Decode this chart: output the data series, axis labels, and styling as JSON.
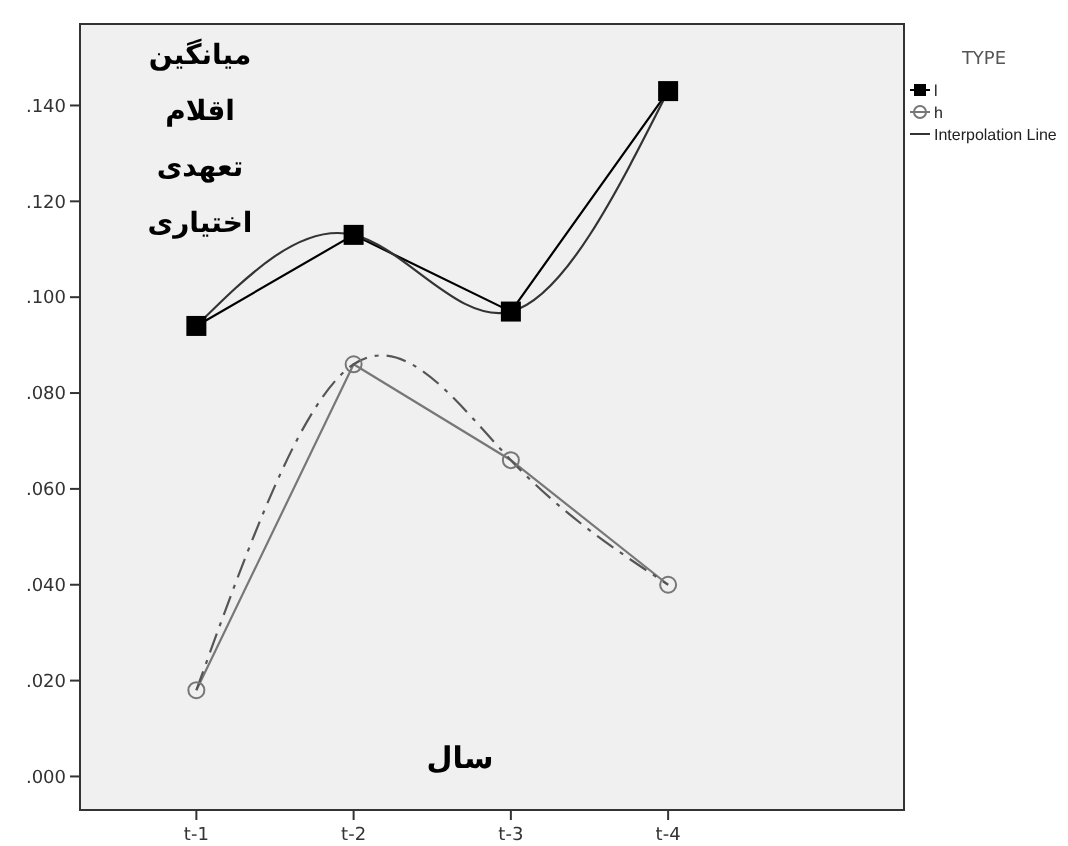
{
  "chart_data": {
    "type": "line",
    "ylabel": "میانگین اقلام تعهدی اختیاری",
    "xlabel": "سال",
    "legend_title": "TYPE",
    "categories": [
      "t-1",
      "t-2",
      "t-3",
      "t-4"
    ],
    "series": [
      {
        "name": "l",
        "color": "#000000",
        "values": [
          0.094,
          0.113,
          0.097,
          0.143
        ],
        "marker": "square",
        "line_style": "solid"
      },
      {
        "name": "h",
        "color": "#777777",
        "values": [
          0.018,
          0.086,
          0.066,
          0.04
        ],
        "marker": "circle",
        "line_style": "solid"
      },
      {
        "name": "Interpolation Line",
        "type": "line",
        "color": "#333333",
        "values": [
          0.094,
          0.113,
          0.097,
          0.143
        ],
        "marker": "none",
        "line_style": "solid"
      },
      {
        "type": "line",
        "color": "#555555",
        "values": [
          0.018,
          0.086,
          0.066,
          0.04
        ],
        "marker": "none",
        "line_style": "dashed"
      }
    ],
    "ylim": [
      -0.007,
      0.157
    ],
    "yticks": [
      {
        "value": 0,
        "label": ".000"
      },
      {
        "value": 0.02,
        "label": ".020"
      },
      {
        "value": 0.04,
        "label": ".040"
      },
      {
        "value": 0.06,
        "label": ".060"
      },
      {
        "value": 0.08,
        "label": ".080"
      },
      {
        "value": 0.1,
        "label": ".100"
      },
      {
        "value": 0.12,
        "label": ".120"
      },
      {
        "value": 0.14,
        "label": ".140"
      }
    ],
    "legend": "right",
    "grid": false
  }
}
